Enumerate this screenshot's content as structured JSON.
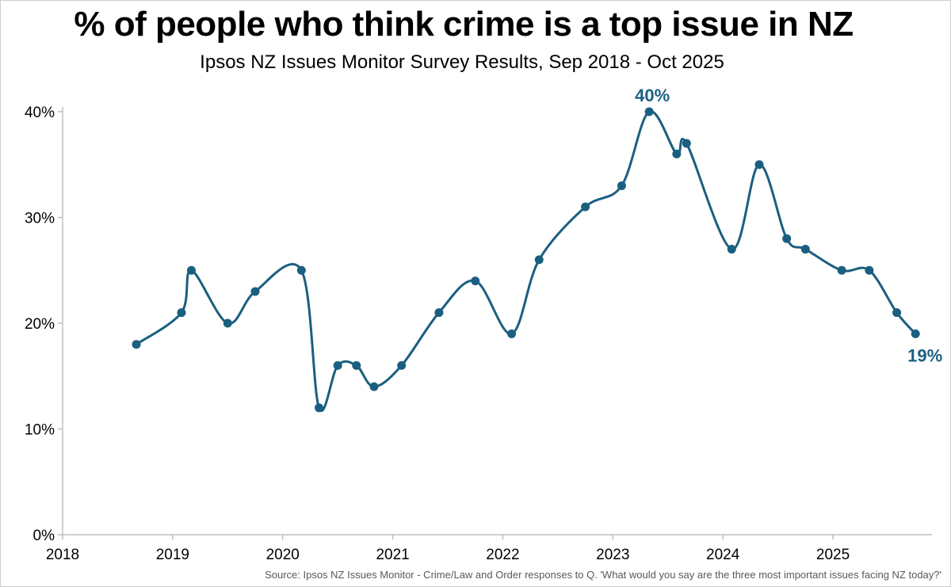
{
  "title": "% of people who think crime is a top issue in NZ",
  "subtitle": "Ipsos NZ Issues Monitor Survey Results, Sep 2018 - Oct 2025",
  "source": "Source: Ipsos NZ Issues Monitor - Crime/Law and Order responses to Q. 'What would you say are the three most important issues facing NZ today?'",
  "colors": {
    "series": "#1b5f80",
    "axis": "#bfbfbf",
    "label": "#1b5f80"
  },
  "chart_data": {
    "type": "line",
    "title": "% of people who think crime is a top issue in NZ",
    "subtitle": "Ipsos NZ Issues Monitor Survey Results, Sep 2018 - Oct 2025",
    "xlabel": "",
    "ylabel": "",
    "xlim": [
      2018,
      2025.9
    ],
    "ylim": [
      0,
      40
    ],
    "grid": false,
    "smooth": true,
    "x_ticks": [
      2018,
      2019,
      2020,
      2021,
      2022,
      2023,
      2024,
      2025
    ],
    "x_tick_labels": [
      "2018",
      "2019",
      "2020",
      "2021",
      "2022",
      "2023",
      "2024",
      "2025"
    ],
    "y_ticks": [
      0,
      10,
      20,
      30,
      40
    ],
    "y_tick_labels": [
      "0%",
      "10%",
      "20%",
      "30%",
      "40%"
    ],
    "series": [
      {
        "x": [
          2018.67,
          2019.08,
          2019.17,
          2019.5,
          2019.75,
          2020.17,
          2020.33,
          2020.5,
          2020.67,
          2020.83,
          2021.08,
          2021.42,
          2021.75,
          2022.08,
          2022.33,
          2022.75,
          2023.08,
          2023.33,
          2023.58,
          2023.67,
          2024.08,
          2024.33,
          2024.58,
          2024.75,
          2025.08,
          2025.33,
          2025.58,
          2025.75
        ],
        "y": [
          18,
          21,
          25,
          20,
          23,
          25,
          12,
          16,
          16,
          14,
          16,
          21,
          24,
          19,
          26,
          31,
          33,
          40,
          36,
          37,
          27,
          35,
          28,
          27,
          25,
          25,
          21,
          19
        ]
      }
    ],
    "annotations": [
      {
        "text": "40%",
        "point": 17,
        "position": "above"
      },
      {
        "text": "19%",
        "point": 27,
        "position": "below"
      }
    ]
  }
}
